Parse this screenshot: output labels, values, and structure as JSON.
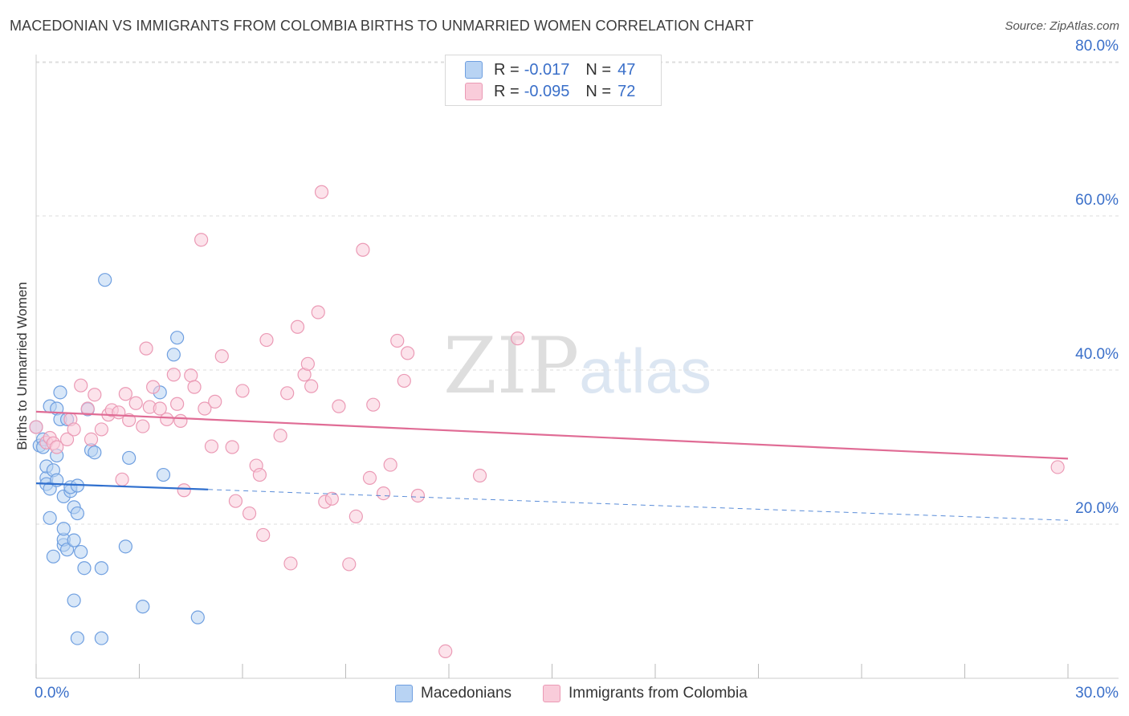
{
  "title": "MACEDONIAN VS IMMIGRANTS FROM COLOMBIA BIRTHS TO UNMARRIED WOMEN CORRELATION CHART",
  "source": "Source: ZipAtlas.com",
  "watermark": {
    "zip": "ZIP",
    "atlas": "atlas"
  },
  "legend": {
    "macedonian": {
      "r_label": "R =",
      "r_value": "-0.017",
      "n_label": "N =",
      "n_value": "47",
      "color": "#a8c8f0",
      "edge": "#5b8fd6"
    },
    "colombia": {
      "r_label": "R =",
      "r_value": "-0.095",
      "n_label": "N =",
      "n_value": "72",
      "color": "#f7bfd0",
      "edge": "#e880a0"
    }
  },
  "bottom_legend": {
    "macedonians": "Macedonians",
    "colombia": "Immigrants from Colombia"
  },
  "chart_data": {
    "type": "scatter",
    "title": "MACEDONIAN VS IMMIGRANTS FROM COLOMBIA BIRTHS TO UNMARRIED WOMEN CORRELATION CHART",
    "xlabel": "",
    "ylabel": "Births to Unmarried Women",
    "xlim": [
      0,
      30
    ],
    "ylim": [
      0,
      80
    ],
    "x_tick_labels": [
      "0.0%",
      "30.0%"
    ],
    "y_tick_labels": [
      {
        "value": 20,
        "label": "20.0%"
      },
      {
        "value": 40,
        "label": "40.0%"
      },
      {
        "value": 60,
        "label": "60.0%"
      },
      {
        "value": 80,
        "label": "80.0%"
      }
    ],
    "series": [
      {
        "name": "Macedonians",
        "color": "#6f9fe0",
        "fill": "#b8d3f3",
        "trend_color": "#2f6fce",
        "trend": {
          "x_solid": [
            0,
            5.0
          ],
          "x_dashed": [
            5.0,
            30
          ],
          "y_at_0": 25.3,
          "y_at_30": 20.5
        },
        "points": [
          [
            0.1,
            30.2
          ],
          [
            0.2,
            31.0
          ],
          [
            0.2,
            30.0
          ],
          [
            0.3,
            26.0
          ],
          [
            0.3,
            27.5
          ],
          [
            0.3,
            25.2
          ],
          [
            0.4,
            35.3
          ],
          [
            0.4,
            20.8
          ],
          [
            0.4,
            24.6
          ],
          [
            0.5,
            15.8
          ],
          [
            0.5,
            27.0
          ],
          [
            0.6,
            28.9
          ],
          [
            0.6,
            35.0
          ],
          [
            0.6,
            25.7
          ],
          [
            0.7,
            37.1
          ],
          [
            0.7,
            33.6
          ],
          [
            0.8,
            23.6
          ],
          [
            0.8,
            17.3
          ],
          [
            0.8,
            18.0
          ],
          [
            0.8,
            19.4
          ],
          [
            0.9,
            16.7
          ],
          [
            0.9,
            33.6
          ],
          [
            1.0,
            24.3
          ],
          [
            1.0,
            24.8
          ],
          [
            1.1,
            17.9
          ],
          [
            1.1,
            22.2
          ],
          [
            1.1,
            10.1
          ],
          [
            1.2,
            25.0
          ],
          [
            1.2,
            21.4
          ],
          [
            1.2,
            5.2
          ],
          [
            1.3,
            16.4
          ],
          [
            1.4,
            14.3
          ],
          [
            1.5,
            34.9
          ],
          [
            1.6,
            29.6
          ],
          [
            1.7,
            29.3
          ],
          [
            1.9,
            14.3
          ],
          [
            1.9,
            5.2
          ],
          [
            2.0,
            51.7
          ],
          [
            2.6,
            17.1
          ],
          [
            2.7,
            28.6
          ],
          [
            3.1,
            9.3
          ],
          [
            3.7,
            26.4
          ],
          [
            3.6,
            37.1
          ],
          [
            4.0,
            42.0
          ],
          [
            4.1,
            44.2
          ],
          [
            4.7,
            7.9
          ],
          [
            0.0,
            32.6
          ]
        ]
      },
      {
        "name": "Immigrants from Colombia",
        "color": "#eb9ab5",
        "fill": "#f9ccda",
        "trend_color": "#e06c95",
        "trend": {
          "x_solid": [
            0,
            30
          ],
          "y_at_0": 34.6,
          "y_at_30": 28.5
        },
        "points": [
          [
            0.0,
            32.6
          ],
          [
            0.3,
            30.6
          ],
          [
            0.4,
            31.2
          ],
          [
            0.5,
            30.5
          ],
          [
            0.6,
            30.0
          ],
          [
            0.9,
            31.0
          ],
          [
            1.0,
            33.6
          ],
          [
            1.1,
            32.3
          ],
          [
            1.3,
            38.0
          ],
          [
            1.5,
            35.0
          ],
          [
            1.6,
            31.0
          ],
          [
            1.7,
            36.8
          ],
          [
            1.9,
            32.3
          ],
          [
            2.1,
            34.2
          ],
          [
            2.2,
            34.8
          ],
          [
            2.4,
            34.5
          ],
          [
            2.5,
            25.8
          ],
          [
            2.6,
            36.9
          ],
          [
            2.7,
            33.5
          ],
          [
            2.9,
            35.7
          ],
          [
            3.1,
            32.7
          ],
          [
            3.2,
            42.8
          ],
          [
            3.3,
            35.2
          ],
          [
            3.4,
            37.8
          ],
          [
            3.6,
            35.0
          ],
          [
            3.8,
            33.6
          ],
          [
            4.0,
            39.4
          ],
          [
            4.1,
            35.6
          ],
          [
            4.2,
            33.4
          ],
          [
            4.3,
            24.4
          ],
          [
            4.5,
            39.3
          ],
          [
            4.6,
            37.8
          ],
          [
            4.8,
            56.9
          ],
          [
            4.9,
            35.0
          ],
          [
            5.1,
            30.1
          ],
          [
            5.2,
            35.9
          ],
          [
            5.4,
            41.8
          ],
          [
            5.7,
            30.0
          ],
          [
            5.8,
            23.0
          ],
          [
            6.0,
            37.3
          ],
          [
            6.2,
            21.4
          ],
          [
            6.4,
            27.6
          ],
          [
            6.5,
            26.4
          ],
          [
            6.6,
            18.6
          ],
          [
            6.7,
            43.9
          ],
          [
            7.1,
            31.5
          ],
          [
            7.3,
            37.0
          ],
          [
            7.4,
            14.9
          ],
          [
            7.6,
            45.6
          ],
          [
            7.8,
            39.4
          ],
          [
            7.9,
            40.8
          ],
          [
            8.0,
            37.9
          ],
          [
            8.2,
            47.5
          ],
          [
            8.3,
            63.1
          ],
          [
            8.4,
            22.9
          ],
          [
            8.6,
            23.3
          ],
          [
            8.8,
            35.3
          ],
          [
            9.1,
            14.8
          ],
          [
            9.3,
            21.0
          ],
          [
            9.5,
            55.6
          ],
          [
            9.7,
            26.0
          ],
          [
            9.8,
            35.5
          ],
          [
            10.1,
            24.0
          ],
          [
            10.3,
            27.7
          ],
          [
            10.5,
            43.8
          ],
          [
            10.7,
            38.6
          ],
          [
            10.8,
            42.2
          ],
          [
            11.1,
            23.7
          ],
          [
            11.9,
            3.5
          ],
          [
            12.9,
            26.3
          ],
          [
            14.0,
            44.1
          ],
          [
            29.7,
            27.4
          ]
        ]
      }
    ]
  }
}
